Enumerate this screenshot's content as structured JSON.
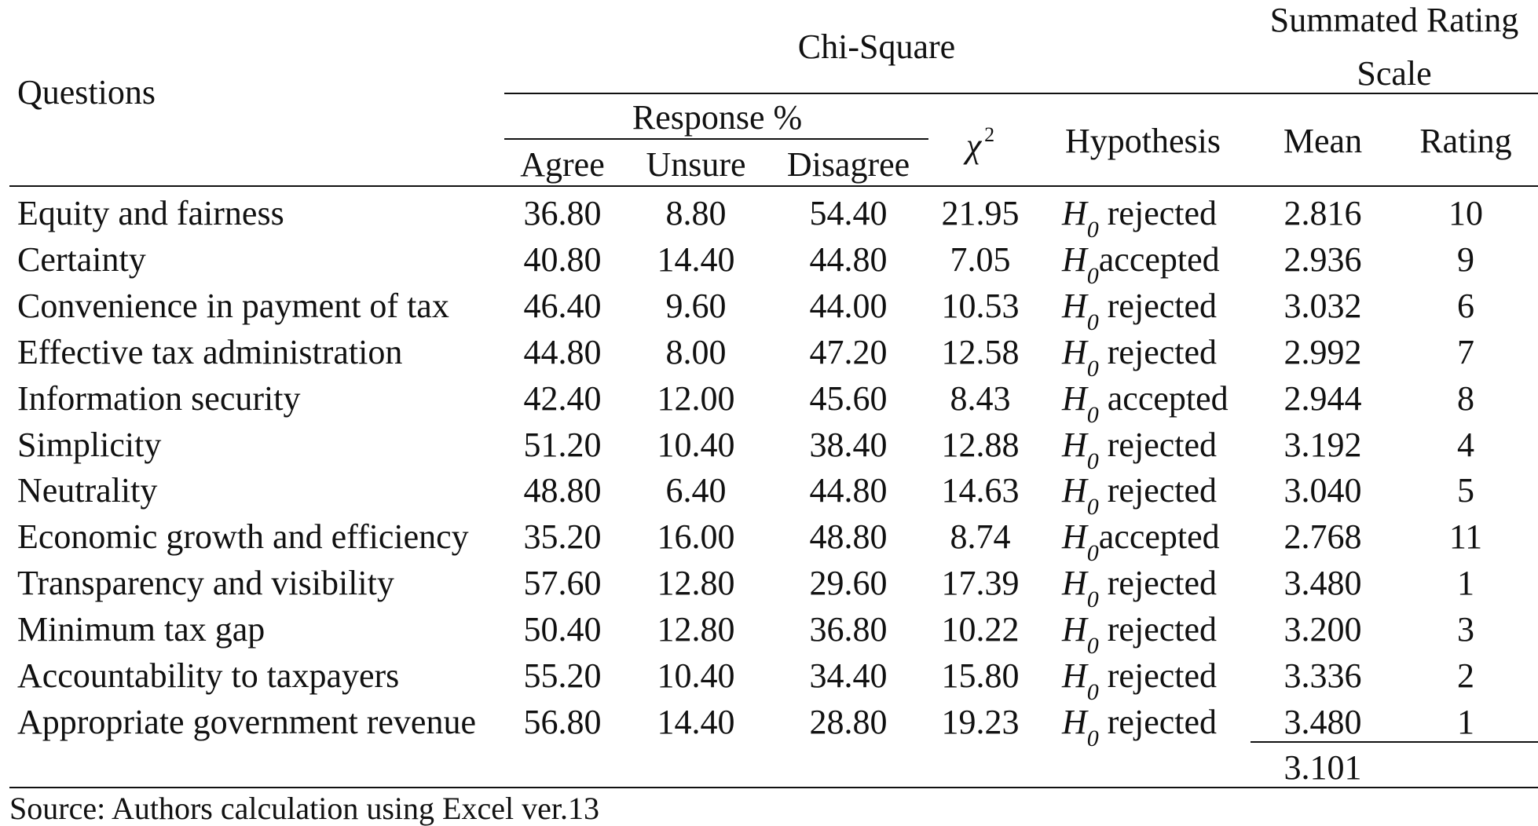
{
  "header": {
    "questions_label": "Questions",
    "chi_square_label": "Chi-Square",
    "summated_label_line1": "Summated Rating",
    "summated_label_line2": "Scale",
    "response_label": "Response %",
    "agree_label": "Agree",
    "unsure_label": "Unsure",
    "disagree_label": "Disagree",
    "chi_symbol": "χ",
    "chi_exponent": "2",
    "hypothesis_label": "Hypothesis",
    "mean_label": "Mean",
    "rating_label": "Rating"
  },
  "rows": [
    {
      "question": "Equity and fairness",
      "agree": "36.80",
      "unsure": "8.80",
      "disagree": "54.40",
      "chi2": "21.95",
      "h": "H",
      "h_sub": "0",
      "result": " rejected",
      "mean": "2.816",
      "rating": "10"
    },
    {
      "question": "Certainty",
      "agree": "40.80",
      "unsure": "14.40",
      "disagree": "44.80",
      "chi2": "7.05",
      "h": "H",
      "h_sub": "0",
      "result": "accepted",
      "mean": "2.936",
      "rating": "9"
    },
    {
      "question": "Convenience in payment of tax",
      "agree": "46.40",
      "unsure": "9.60",
      "disagree": "44.00",
      "chi2": "10.53",
      "h": "H",
      "h_sub": "0",
      "result": " rejected",
      "mean": "3.032",
      "rating": "6"
    },
    {
      "question": "Effective tax administration",
      "agree": "44.80",
      "unsure": "8.00",
      "disagree": "47.20",
      "chi2": "12.58",
      "h": "H",
      "h_sub": "0",
      "result": " rejected",
      "mean": "2.992",
      "rating": "7"
    },
    {
      "question": "Information security",
      "agree": "42.40",
      "unsure": "12.00",
      "disagree": "45.60",
      "chi2": "8.43",
      "h": "H",
      "h_sub": "0",
      "result": " accepted",
      "mean": "2.944",
      "rating": "8"
    },
    {
      "question": "Simplicity",
      "agree": "51.20",
      "unsure": "10.40",
      "disagree": "38.40",
      "chi2": "12.88",
      "h": "H",
      "h_sub": "0",
      "result": " rejected",
      "mean": "3.192",
      "rating": "4"
    },
    {
      "question": "Neutrality",
      "agree": "48.80",
      "unsure": "6.40",
      "disagree": "44.80",
      "chi2": "14.63",
      "h": "H",
      "h_sub": "0",
      "result": " rejected",
      "mean": "3.040",
      "rating": "5"
    },
    {
      "question": "Economic growth and efficiency",
      "agree": "35.20",
      "unsure": "16.00",
      "disagree": "48.80",
      "chi2": "8.74",
      "h": "H",
      "h_sub": "0",
      "result": "accepted",
      "mean": "2.768",
      "rating": "11"
    },
    {
      "question": "Transparency and visibility",
      "agree": "57.60",
      "unsure": "12.80",
      "disagree": "29.60",
      "chi2": "17.39",
      "h": "H",
      "h_sub": "0",
      "result": " rejected",
      "mean": "3.480",
      "rating": "1"
    },
    {
      "question": "Minimum tax gap",
      "agree": "50.40",
      "unsure": "12.80",
      "disagree": "36.80",
      "chi2": "10.22",
      "h": "H",
      "h_sub": "0",
      "result": " rejected",
      "mean": "3.200",
      "rating": "3"
    },
    {
      "question": "Accountability to taxpayers",
      "agree": "55.20",
      "unsure": "10.40",
      "disagree": "34.40",
      "chi2": "15.80",
      "h": "H",
      "h_sub": "0",
      "result": " rejected",
      "mean": "3.336",
      "rating": "2"
    },
    {
      "question": "Appropriate government revenue",
      "agree": "56.80",
      "unsure": "14.40",
      "disagree": "28.80",
      "chi2": "19.23",
      "h": "H",
      "h_sub": "0",
      "result": " rejected",
      "mean": "3.480",
      "rating": "1"
    }
  ],
  "summary_mean": "3.101",
  "source_note": "Source: Authors calculation using Excel ver.13"
}
